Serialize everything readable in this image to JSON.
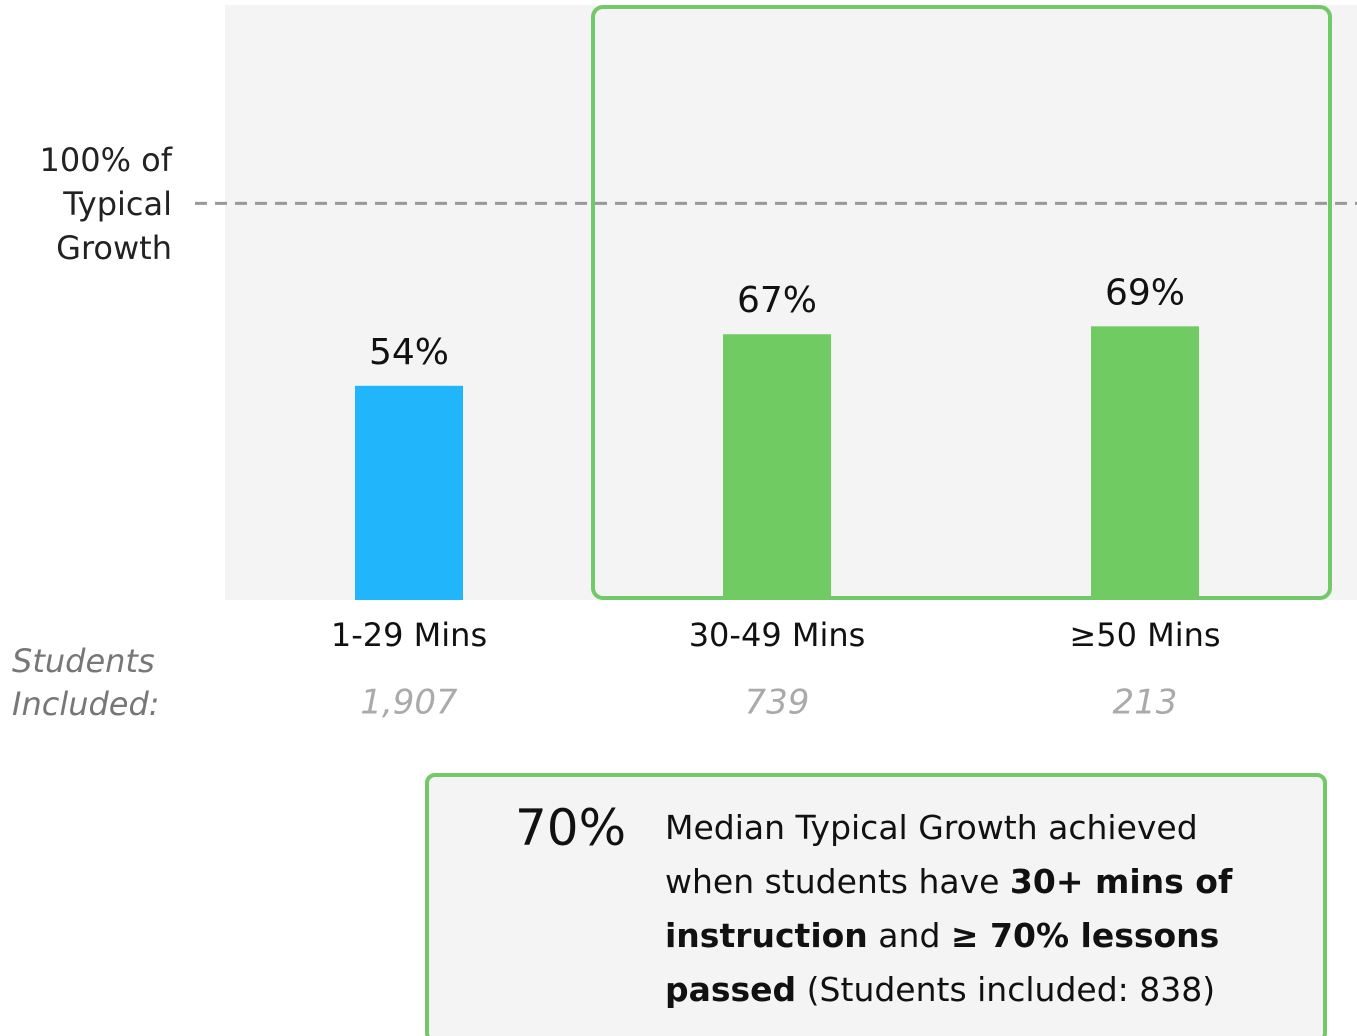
{
  "chart_data": {
    "type": "bar",
    "categories": [
      "1-29 Mins",
      "30-49 Mins",
      "≥50 Mins"
    ],
    "values": [
      54,
      67,
      69
    ],
    "value_labels": [
      "54%",
      "67%",
      "69%"
    ],
    "colors": [
      "#21b6fc",
      "#70cb63",
      "#70cb63"
    ],
    "ylim": [
      0,
      150
    ],
    "reference": {
      "value": 100,
      "label": "100% of Typical Growth"
    },
    "students_label": "Students Included:",
    "students_counts": [
      "1,907",
      "739",
      "213"
    ],
    "callout": {
      "headline": "70%",
      "text": [
        {
          "text": "Median Typical Growth achieved when students have ",
          "bold": false
        },
        {
          "text": "30+ mins of instruction",
          "bold": true
        },
        {
          "text": " and ",
          "bold": false
        },
        {
          "text": "≥ 70% lessons passed",
          "bold": true
        },
        {
          "text": " (Students included: 838)",
          "bold": false
        }
      ]
    }
  }
}
